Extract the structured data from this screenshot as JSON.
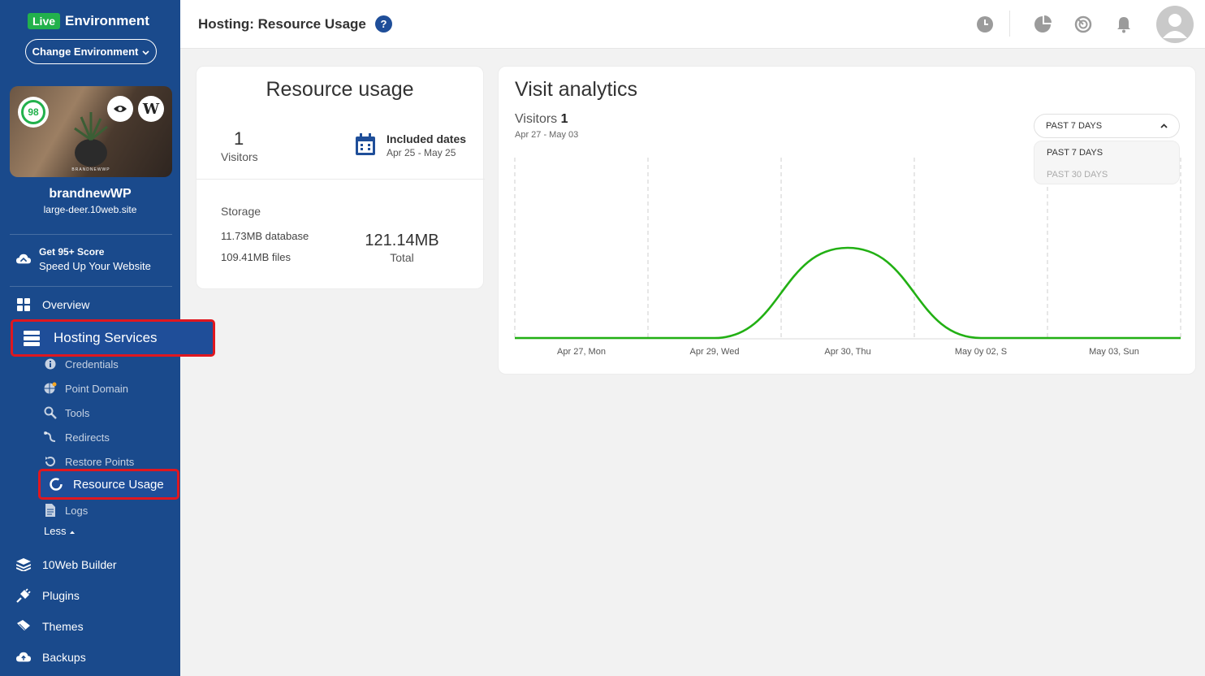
{
  "environment": {
    "badge": "Live",
    "title": "Environment",
    "change_label": "Change Environment"
  },
  "site": {
    "score": "98",
    "thumb_caption": "BRANDNEWWP",
    "name": "brandnewWP",
    "url": "large-deer.10web.site"
  },
  "promo": {
    "line1": "Get 95+ Score",
    "line2": "Speed Up Your Website"
  },
  "nav": {
    "overview": "Overview",
    "hosting": "Hosting Services",
    "sub": {
      "credentials": "Credentials",
      "point_domain": "Point Domain",
      "tools": "Tools",
      "redirects": "Redirects",
      "restore_points": "Restore Points",
      "resource_usage": "Resource Usage",
      "logs": "Logs"
    },
    "less": "Less",
    "builder": "10Web Builder",
    "plugins": "Plugins",
    "themes": "Themes",
    "backups": "Backups"
  },
  "header": {
    "title": "Hosting: Resource Usage",
    "help": "?"
  },
  "resource": {
    "title": "Resource usage",
    "visitors_value": "1",
    "visitors_label": "Visitors",
    "included_title": "Included dates",
    "included_range": "Apr 25 - May 25",
    "storage_label": "Storage",
    "database": "11.73MB database",
    "files": "109.41MB files",
    "total_value": "121.14MB",
    "total_label": "Total"
  },
  "analytics": {
    "title": "Visit analytics",
    "visitors_label": "Visitors",
    "visitors_value": "1",
    "range": "Apr 27 - May 03",
    "dropdown_selected": "PAST 7 DAYS",
    "dropdown_options": [
      "PAST 7 DAYS",
      "PAST 30 DAYS"
    ]
  },
  "colors": {
    "sidebar": "#1a4a8c",
    "accent": "#1f4e99",
    "highlight": "#e0171f",
    "line": "#22b014"
  },
  "chart_data": {
    "type": "line",
    "categories": [
      "Apr 27, Mon",
      "Apr 29, Wed",
      "Apr 30, Thu",
      "May 0y 02, S",
      "May 03, Sun"
    ],
    "series": [
      {
        "values": [
          0,
          0,
          1,
          0,
          0
        ]
      }
    ],
    "ylim": [
      0,
      1
    ],
    "grid": "vertical dashed"
  }
}
